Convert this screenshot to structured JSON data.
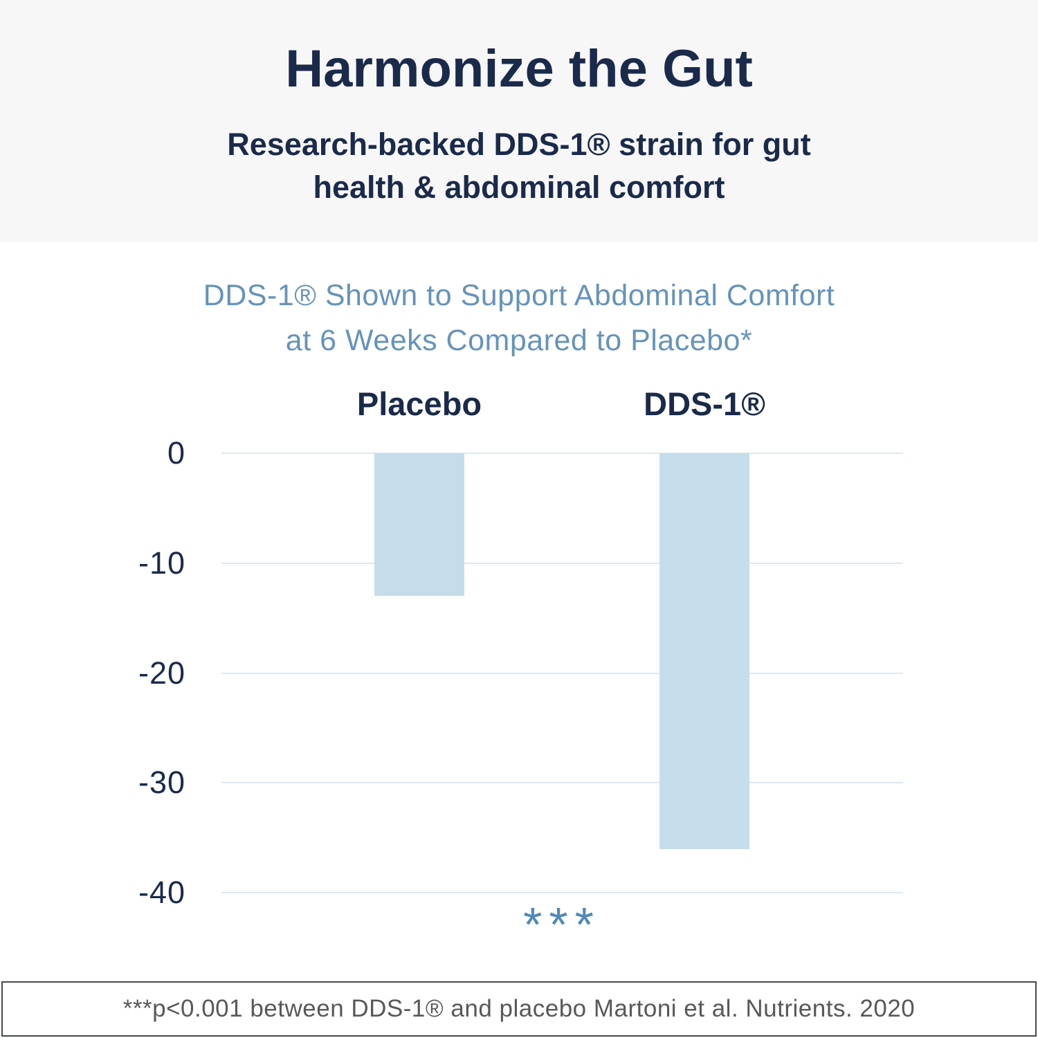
{
  "header": {
    "title": "Harmonize the Gut",
    "subtitle_lines": [
      "Research-backed DDS-1® strain for gut",
      "health & abdominal comfort"
    ]
  },
  "chart": {
    "title_lines": [
      "DDS-1® Shown to Support Abdominal Comfort",
      "at 6 Weeks Compared to Placebo*"
    ],
    "significance_marker": "***"
  },
  "chart_data": {
    "type": "bar",
    "title": "DDS-1® Shown to Support Abdominal Comfort at 6 Weeks Compared to Placebo*",
    "categories": [
      "Placebo",
      "DDS-1®"
    ],
    "values": [
      -13,
      -36
    ],
    "xlabel": "",
    "ylabel": "",
    "ylim": [
      -40,
      0
    ],
    "yticks": [
      0,
      -10,
      -20,
      -30,
      -40
    ],
    "grid": true,
    "legend": false,
    "annotation": "***",
    "bar_color": "#c5dcea"
  },
  "footer": {
    "note": "***p<0.001 between DDS-1® and placebo Martoni et al. Nutrients. 2020"
  },
  "colors": {
    "header_background": "#f7f7f8",
    "navy": "#1b2a4a",
    "chart_title_blue": "#6593bb",
    "significance_blue": "#4f89ba",
    "bar_fill": "#c5dcea",
    "gridline": "#dde9f2",
    "footnote_text": "#57585a",
    "footnote_border": "#47484a"
  }
}
